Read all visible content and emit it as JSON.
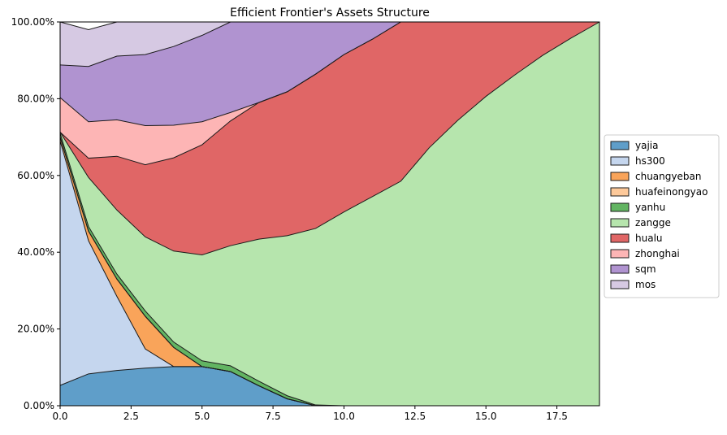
{
  "chart_data": {
    "type": "area",
    "stacked": true,
    "title": "Efficient Frontier's Assets Structure",
    "xlabel": "",
    "ylabel": "",
    "xlim": [
      0,
      19
    ],
    "ylim": [
      0,
      1
    ],
    "x_ticks": [
      0,
      2.5,
      5,
      7.5,
      10,
      12.5,
      15,
      17.5
    ],
    "x_tick_labels": [
      "0.0",
      "2.5",
      "5.0",
      "7.5",
      "10.0",
      "12.5",
      "15.0",
      "17.5"
    ],
    "y_ticks": [
      0,
      0.2,
      0.4,
      0.6,
      0.8,
      1.0
    ],
    "y_tick_labels": [
      "0.00%",
      "20.00%",
      "40.00%",
      "60.00%",
      "80.00%",
      "100.00%"
    ],
    "grid": true,
    "legend_position": "right",
    "x": [
      0,
      1,
      2,
      3,
      4,
      5,
      6,
      7,
      8,
      9,
      10,
      11,
      12,
      13,
      14,
      15,
      16,
      17,
      18,
      19
    ],
    "series": [
      {
        "name": "yajia",
        "color": "#5f9ec9",
        "values": [
          0.053,
          0.083,
          0.092,
          0.098,
          0.102,
          0.102,
          0.089,
          0.052,
          0.018,
          0,
          0,
          0,
          0,
          0,
          0,
          0,
          0,
          0,
          0,
          0
        ]
      },
      {
        "name": "hs300",
        "color": "#c5d6ee",
        "values": [
          0.637,
          0.347,
          0.193,
          0.05,
          0,
          0,
          0,
          0,
          0,
          0,
          0,
          0,
          0,
          0,
          0,
          0,
          0,
          0,
          0,
          0
        ]
      },
      {
        "name": "chuangyeban",
        "color": "#f9a45a",
        "values": [
          0.01,
          0.025,
          0.045,
          0.085,
          0.05,
          0,
          0,
          0,
          0,
          0,
          0,
          0,
          0,
          0,
          0,
          0,
          0,
          0,
          0,
          0
        ]
      },
      {
        "name": "huafeinongyao",
        "color": "#fdc99a",
        "values": [
          0,
          0,
          0,
          0,
          0,
          0,
          0,
          0,
          0,
          0,
          0,
          0,
          0,
          0,
          0,
          0,
          0,
          0,
          0,
          0
        ]
      },
      {
        "name": "yanhu",
        "color": "#62b462",
        "values": [
          0.01,
          0.012,
          0.013,
          0.014,
          0.014,
          0.015,
          0.015,
          0.012,
          0.008,
          0.002,
          0,
          0,
          0,
          0,
          0,
          0,
          0,
          0,
          0,
          0
        ]
      },
      {
        "name": "zangge",
        "color": "#b6e5ad",
        "values": [
          0.003,
          0.128,
          0.167,
          0.193,
          0.237,
          0.276,
          0.313,
          0.37,
          0.417,
          0.46,
          0.505,
          0.545,
          0.585,
          0.672,
          0.743,
          0.806,
          0.861,
          0.913,
          0.958,
          1.0
        ]
      },
      {
        "name": "hualu",
        "color": "#e06666",
        "values": [
          0,
          0.05,
          0.14,
          0.188,
          0.243,
          0.287,
          0.325,
          0.356,
          0.375,
          0.402,
          0.41,
          0.41,
          0.415,
          0.328,
          0.257,
          0.194,
          0.139,
          0.087,
          0.042,
          0
        ]
      },
      {
        "name": "zhonghai",
        "color": "#fdb5b5",
        "values": [
          0.09,
          0.095,
          0.095,
          0.102,
          0.085,
          0.06,
          0.022,
          0,
          0,
          0,
          0,
          0,
          0,
          0,
          0,
          0,
          0,
          0,
          0,
          0
        ]
      },
      {
        "name": "sqm",
        "color": "#b093d0",
        "values": [
          0.085,
          0.144,
          0.166,
          0.185,
          0.205,
          0.225,
          0.236,
          0.21,
          0.182,
          0.136,
          0.085,
          0.045,
          0,
          0,
          0,
          0,
          0,
          0,
          0,
          0
        ]
      },
      {
        "name": "mos",
        "color": "#d6c9e3",
        "values": [
          0.112,
          0.096,
          0.089,
          0.085,
          0.064,
          0.035,
          0,
          0,
          0,
          0,
          0,
          0,
          0,
          0,
          0,
          0,
          0,
          0,
          0,
          0
        ]
      }
    ]
  }
}
